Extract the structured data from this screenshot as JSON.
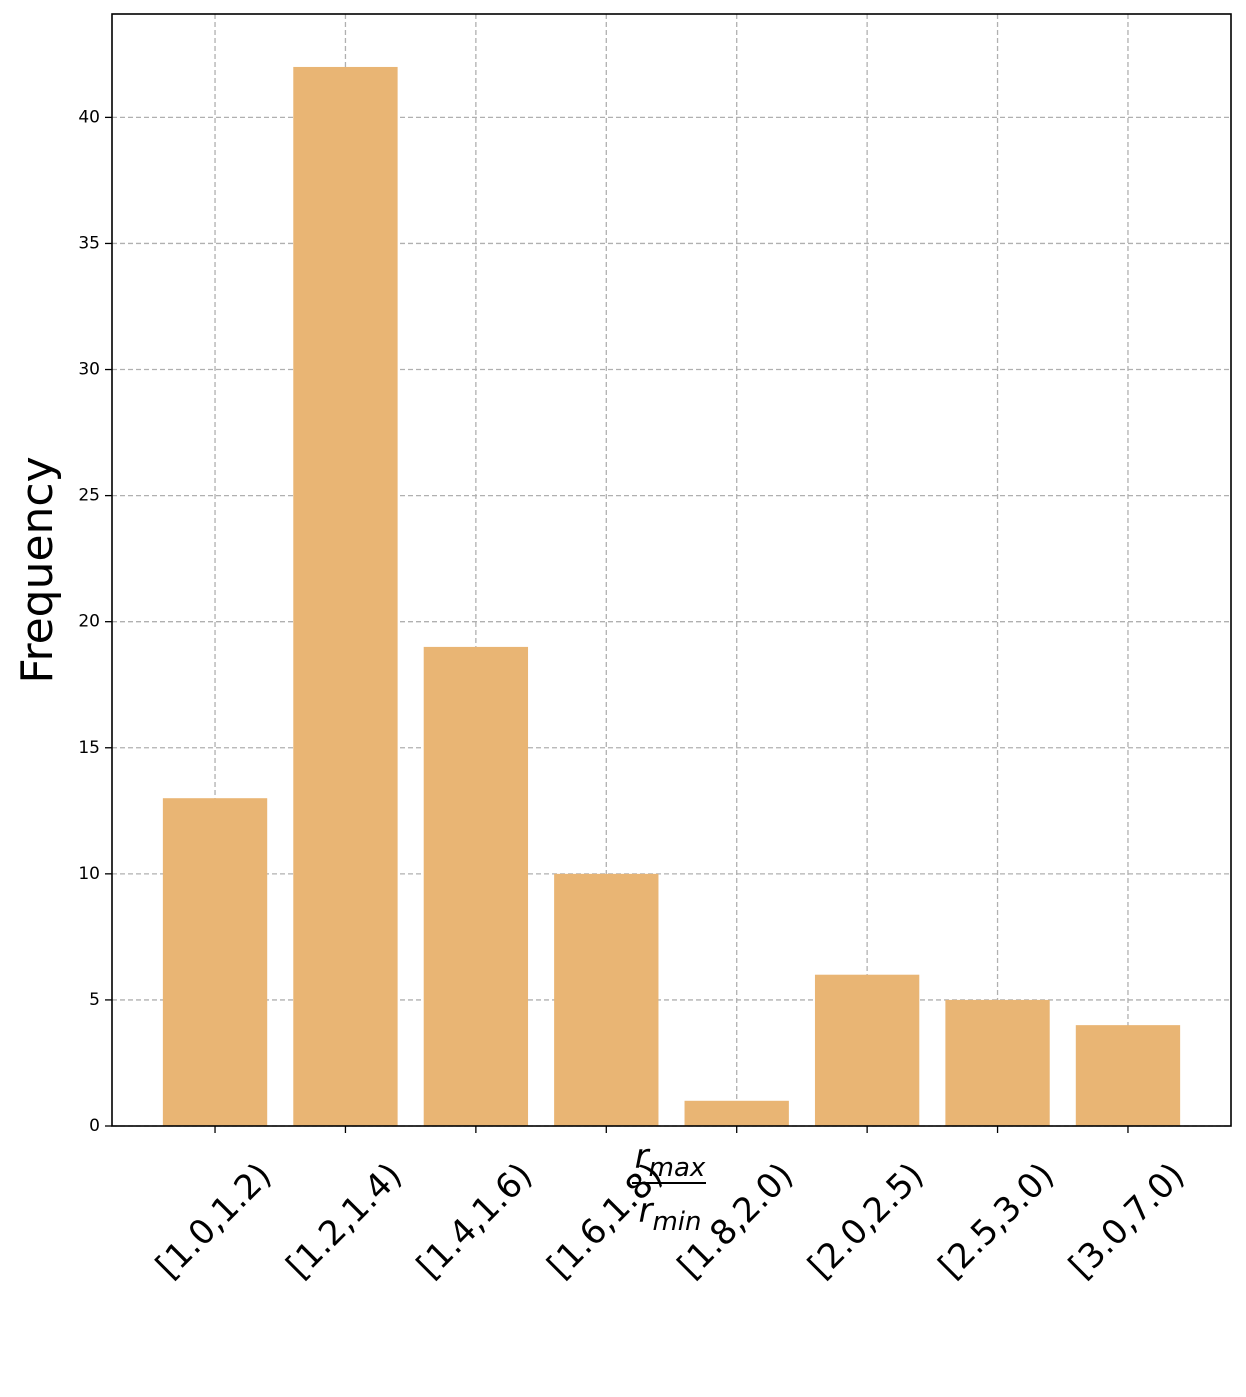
{
  "chart_data": {
    "type": "bar",
    "ylabel": "Frequency",
    "xlabel": {
      "numerator": {
        "base": "r",
        "sub": "max"
      },
      "denominator": {
        "base": "r",
        "sub": "min"
      }
    },
    "categories": [
      "[1.0,1.2)",
      "[1.2,1.4)",
      "[1.4,1.6)",
      "[1.6,1.8)",
      "[1.8,2.0)",
      "[2.0,2.5)",
      "[2.5,3.0)",
      "[3.0,7.0)"
    ],
    "values": [
      13,
      42,
      19,
      10,
      1,
      6,
      5,
      4
    ],
    "color": "#e9b574",
    "ylim": [
      0,
      44.1
    ],
    "yticks": [
      0,
      5,
      10,
      15,
      20,
      25,
      30,
      35,
      40
    ],
    "grid": true
  }
}
